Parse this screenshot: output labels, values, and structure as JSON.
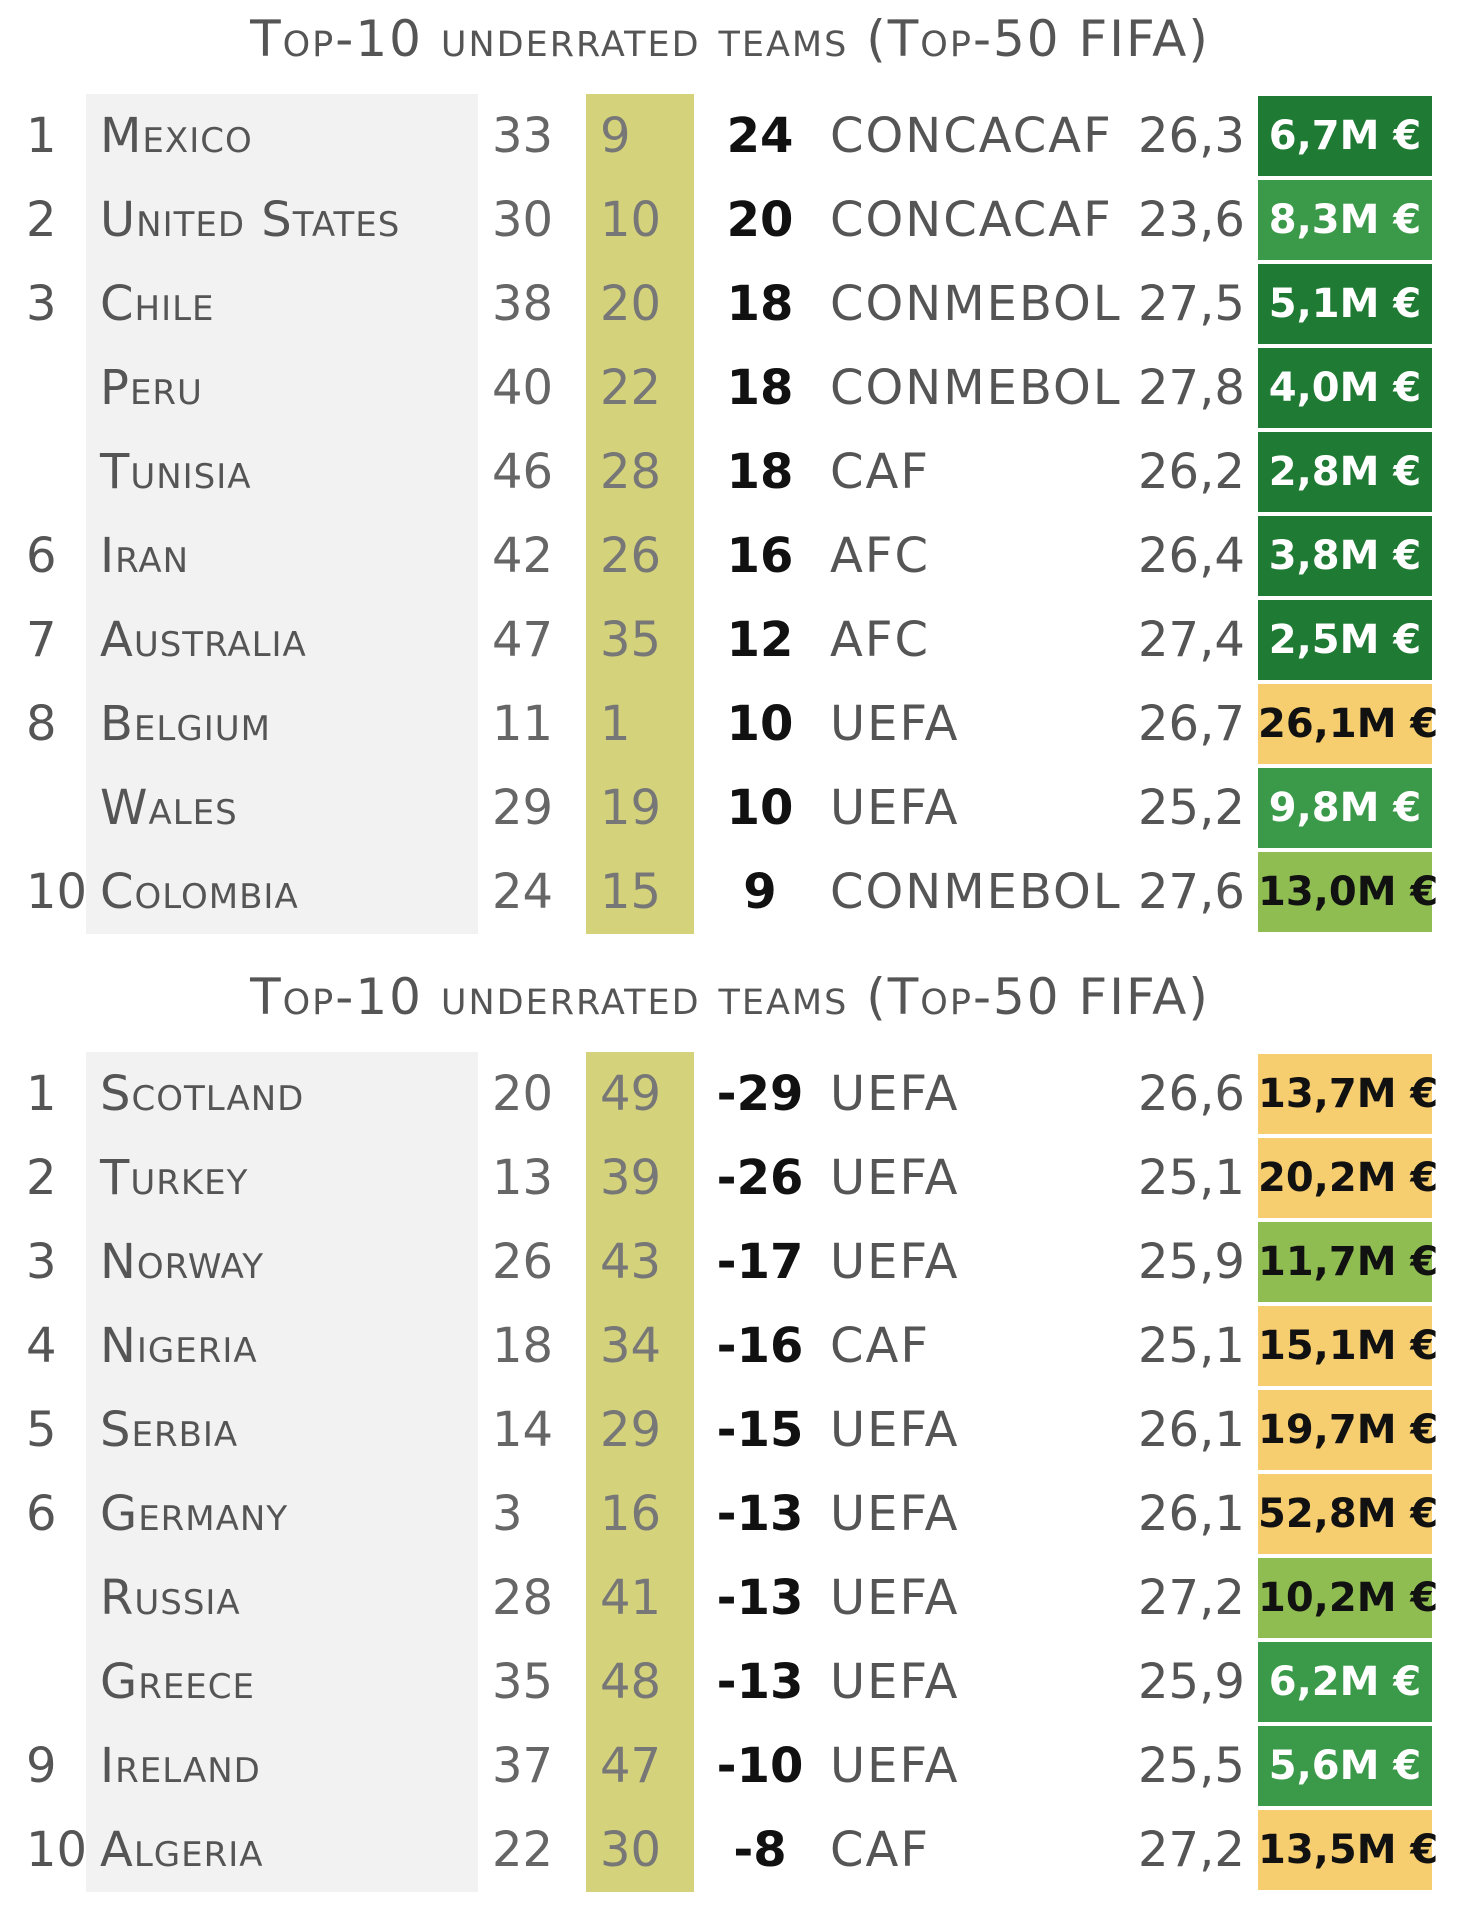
{
  "tables": [
    {
      "title": "Top-10 underrated teams (Top-50 FIFA)",
      "rows": [
        {
          "rank": "1",
          "team": "Mexico",
          "rank_a": "33",
          "rank_b": "9",
          "diff": "24",
          "confederation": "CONCACAF",
          "age": "26,3",
          "value": "6,7M €",
          "value_color": "dark-green"
        },
        {
          "rank": "2",
          "team": "United States",
          "rank_a": "30",
          "rank_b": "10",
          "diff": "20",
          "confederation": "CONCACAF",
          "age": "23,6",
          "value": "8,3M €",
          "value_color": "green"
        },
        {
          "rank": "3",
          "team": "Chile",
          "rank_a": "38",
          "rank_b": "20",
          "diff": "18",
          "confederation": "CONMEBOL",
          "age": "27,5",
          "value": "5,1M €",
          "value_color": "dark-green"
        },
        {
          "rank": "",
          "team": "Peru",
          "rank_a": "40",
          "rank_b": "22",
          "diff": "18",
          "confederation": "CONMEBOL",
          "age": "27,8",
          "value": "4,0M €",
          "value_color": "dark-green"
        },
        {
          "rank": "",
          "team": "Tunisia",
          "rank_a": "46",
          "rank_b": "28",
          "diff": "18",
          "confederation": "CAF",
          "age": "26,2",
          "value": "2,8M €",
          "value_color": "dark-green"
        },
        {
          "rank": "6",
          "team": "Iran",
          "rank_a": "42",
          "rank_b": "26",
          "diff": "16",
          "confederation": "AFC",
          "age": "26,4",
          "value": "3,8M €",
          "value_color": "dark-green"
        },
        {
          "rank": "7",
          "team": "Australia",
          "rank_a": "47",
          "rank_b": "35",
          "diff": "12",
          "confederation": "AFC",
          "age": "27,4",
          "value": "2,5M €",
          "value_color": "dark-green"
        },
        {
          "rank": "8",
          "team": "Belgium",
          "rank_a": "11",
          "rank_b": "1",
          "diff": "10",
          "confederation": "UEFA",
          "age": "26,7",
          "value": "26,1M €",
          "value_color": "yellow"
        },
        {
          "rank": "",
          "team": "Wales",
          "rank_a": "29",
          "rank_b": "19",
          "diff": "10",
          "confederation": "UEFA",
          "age": "25,2",
          "value": "9,8M €",
          "value_color": "green"
        },
        {
          "rank": "10",
          "team": "Colombia",
          "rank_a": "24",
          "rank_b": "15",
          "diff": "9",
          "confederation": "CONMEBOL",
          "age": "27,6",
          "value": "13,0M €",
          "value_color": "light-green"
        }
      ]
    },
    {
      "title": "Top-10 underrated teams (Top-50 FIFA)",
      "rows": [
        {
          "rank": "1",
          "team": "Scotland",
          "rank_a": "20",
          "rank_b": "49",
          "diff": "-29",
          "confederation": "UEFA",
          "age": "26,6",
          "value": "13,7M €",
          "value_color": "yellow"
        },
        {
          "rank": "2",
          "team": "Turkey",
          "rank_a": "13",
          "rank_b": "39",
          "diff": "-26",
          "confederation": "UEFA",
          "age": "25,1",
          "value": "20,2M €",
          "value_color": "yellow"
        },
        {
          "rank": "3",
          "team": "Norway",
          "rank_a": "26",
          "rank_b": "43",
          "diff": "-17",
          "confederation": "UEFA",
          "age": "25,9",
          "value": "11,7M €",
          "value_color": "light-green"
        },
        {
          "rank": "4",
          "team": "Nigeria",
          "rank_a": "18",
          "rank_b": "34",
          "diff": "-16",
          "confederation": "CAF",
          "age": "25,1",
          "value": "15,1M €",
          "value_color": "yellow"
        },
        {
          "rank": "5",
          "team": "Serbia",
          "rank_a": "14",
          "rank_b": "29",
          "diff": "-15",
          "confederation": "UEFA",
          "age": "26,1",
          "value": "19,7M €",
          "value_color": "yellow"
        },
        {
          "rank": "6",
          "team": "Germany",
          "rank_a": "3",
          "rank_b": "16",
          "diff": "-13",
          "confederation": "UEFA",
          "age": "26,1",
          "value": "52,8M €",
          "value_color": "yellow"
        },
        {
          "rank": "",
          "team": "Russia",
          "rank_a": "28",
          "rank_b": "41",
          "diff": "-13",
          "confederation": "UEFA",
          "age": "27,2",
          "value": "10,2M €",
          "value_color": "light-green"
        },
        {
          "rank": "",
          "team": "Greece",
          "rank_a": "35",
          "rank_b": "48",
          "diff": "-13",
          "confederation": "UEFA",
          "age": "25,9",
          "value": "6,2M €",
          "value_color": "green"
        },
        {
          "rank": "9",
          "team": "Ireland",
          "rank_a": "37",
          "rank_b": "47",
          "diff": "-10",
          "confederation": "UEFA",
          "age": "25,5",
          "value": "5,6M €",
          "value_color": "green"
        },
        {
          "rank": "10",
          "team": "Algeria",
          "rank_a": "22",
          "rank_b": "30",
          "diff": "-8",
          "confederation": "CAF",
          "age": "27,2",
          "value": "13,5M €",
          "value_color": "yellow"
        }
      ]
    }
  ],
  "colors": {
    "dark-green": "#1f7a33",
    "green": "#3b9a4a",
    "light-green": "#8fbd52",
    "yellow": "#f6cd6f",
    "rank-column-highlight": "#d4d27a",
    "team-column-background": "#f2f2f2"
  }
}
